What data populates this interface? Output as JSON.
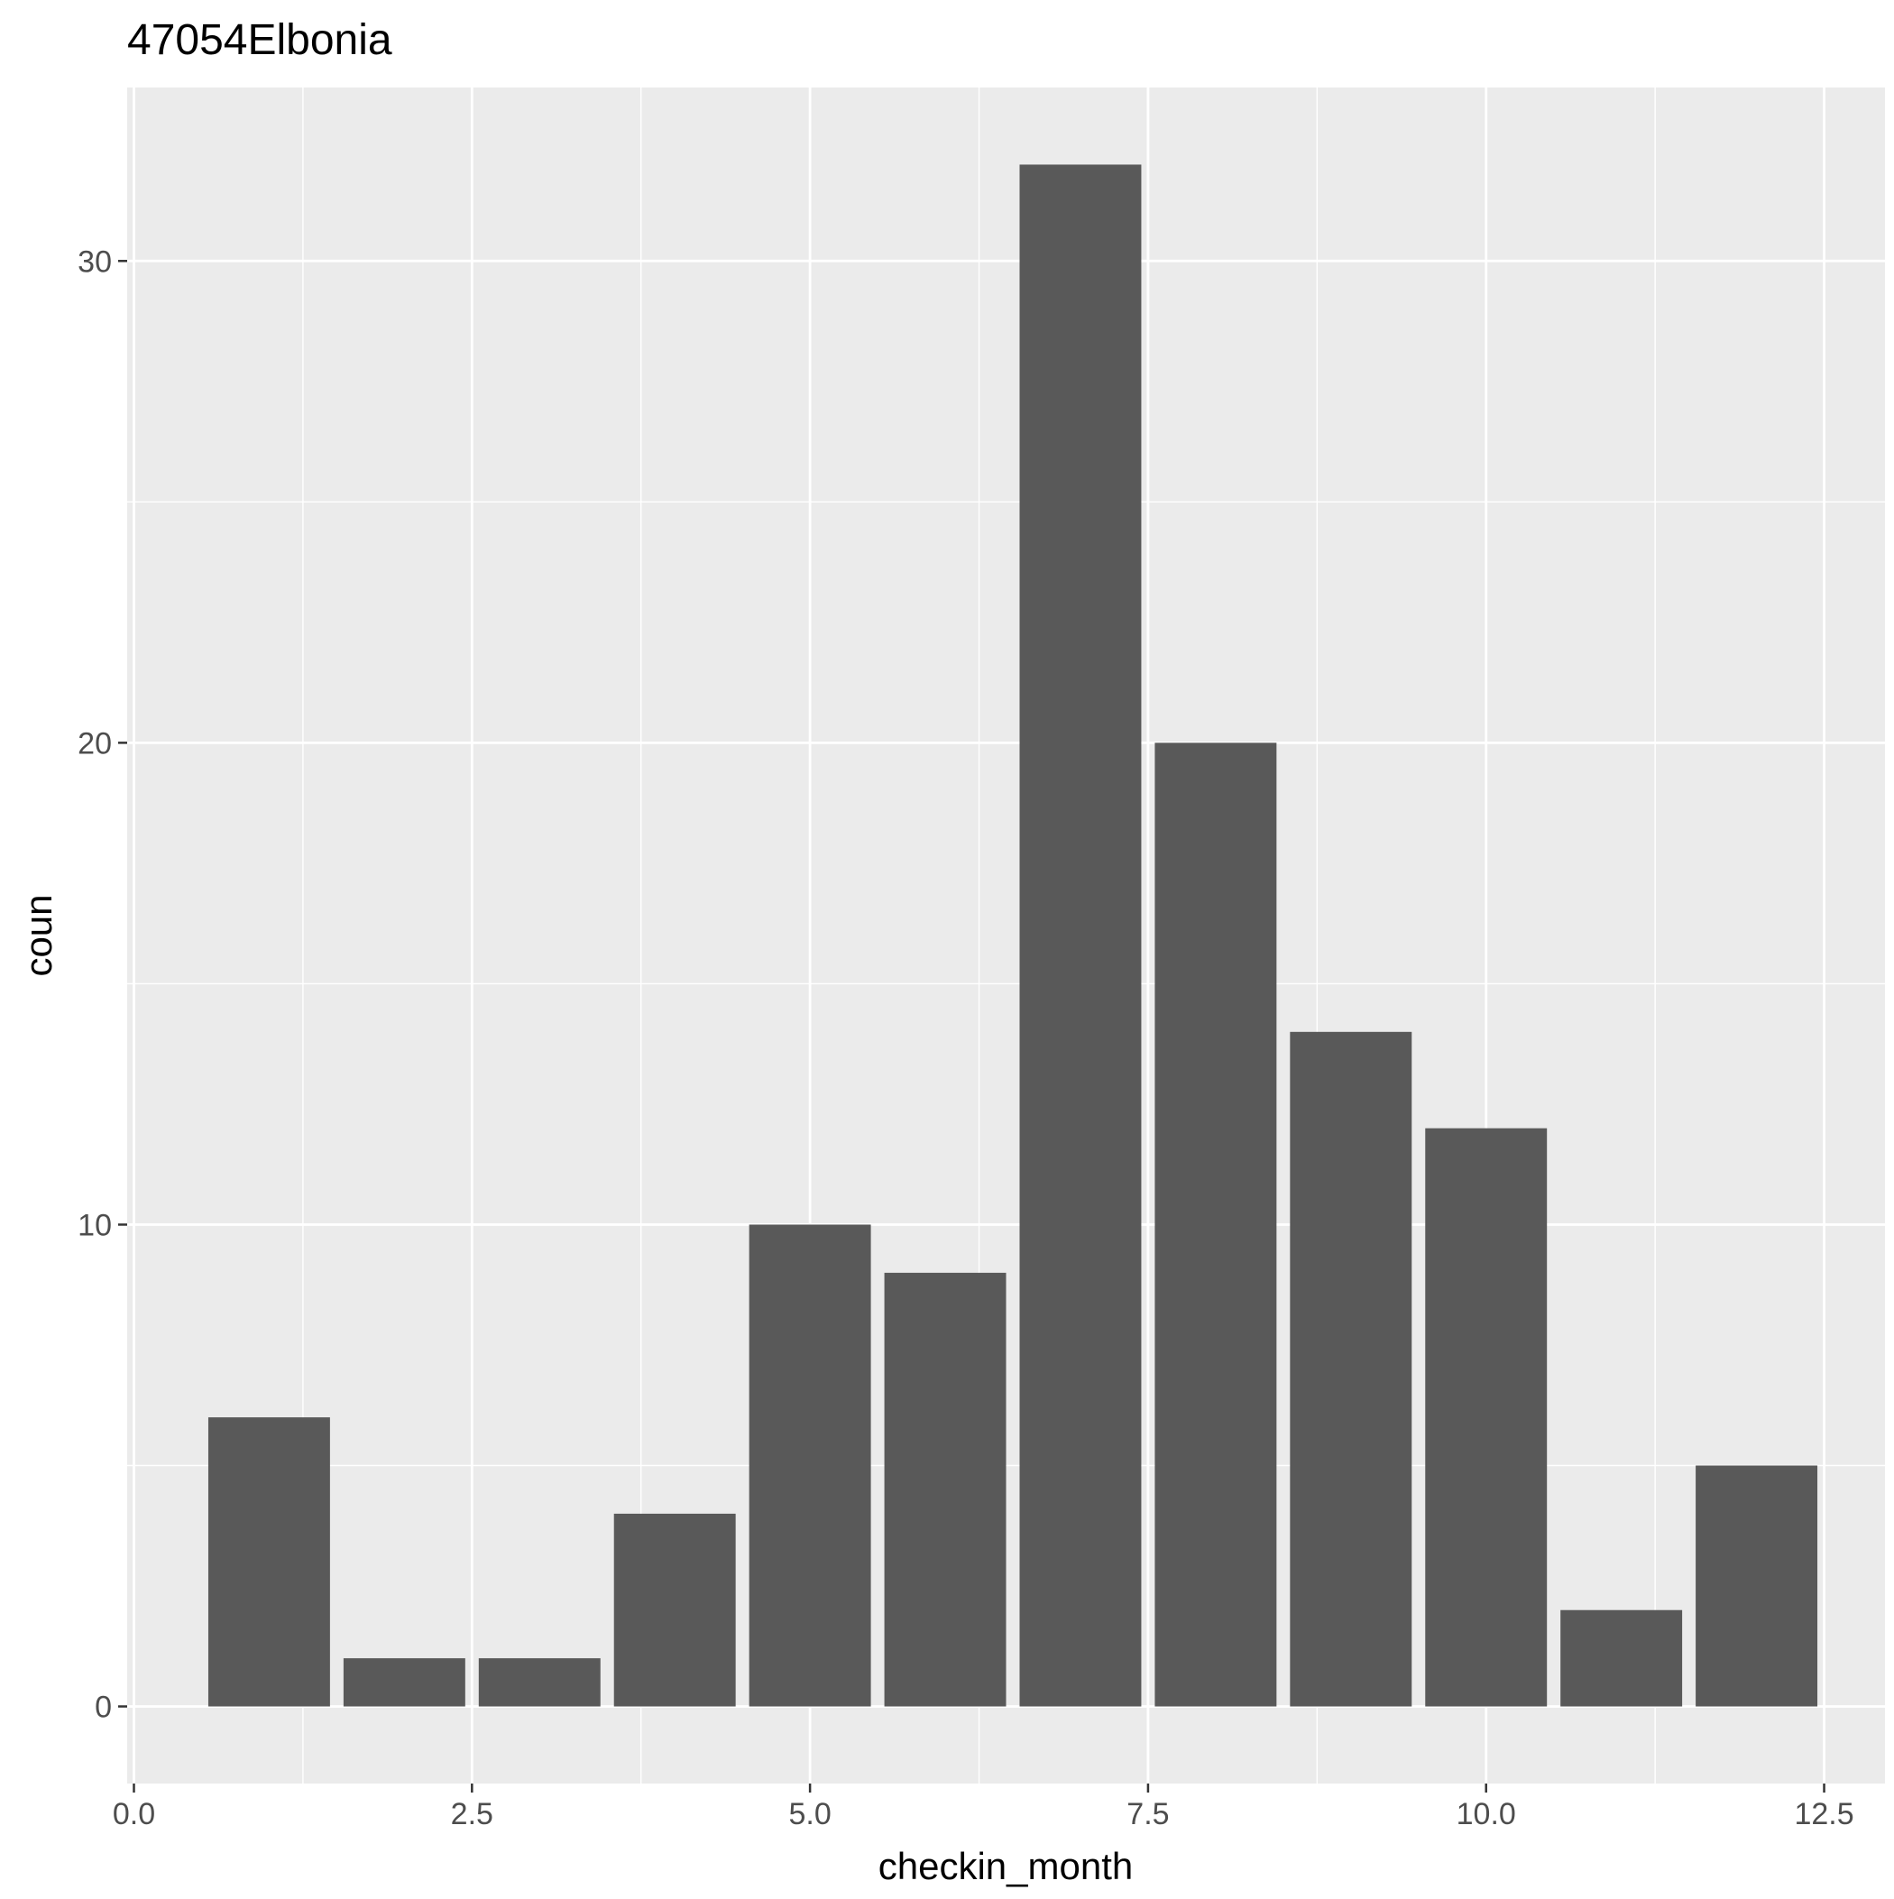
{
  "chart_data": {
    "type": "bar",
    "title": "47054Elbonia",
    "xlabel": "checkin_month",
    "ylabel": "coun",
    "x": [
      1,
      2,
      3,
      4,
      5,
      6,
      7,
      8,
      9,
      10,
      11,
      12
    ],
    "values": [
      6,
      1,
      1,
      4,
      10,
      9,
      32,
      20,
      14,
      12,
      2,
      5
    ],
    "xlim": [
      -0.05,
      12.95
    ],
    "ylim": [
      -1.6,
      33.6
    ],
    "x_ticks": [
      0,
      2.5,
      5,
      7.5,
      10,
      12.5
    ],
    "x_tick_labels": [
      "0.0",
      "2.5",
      "5.0",
      "7.5",
      "10.0",
      "12.5"
    ],
    "y_ticks": [
      0,
      10,
      20,
      30
    ],
    "y_tick_labels": [
      "0",
      "10",
      "20",
      "30"
    ],
    "bar_width": 0.9,
    "grid": true,
    "colors": {
      "panel_background": "#ebebeb",
      "grid_line": "#ffffff",
      "bar_fill": "#595959",
      "tick_label": "#4d4d4d",
      "axis_title": "#000000"
    }
  }
}
